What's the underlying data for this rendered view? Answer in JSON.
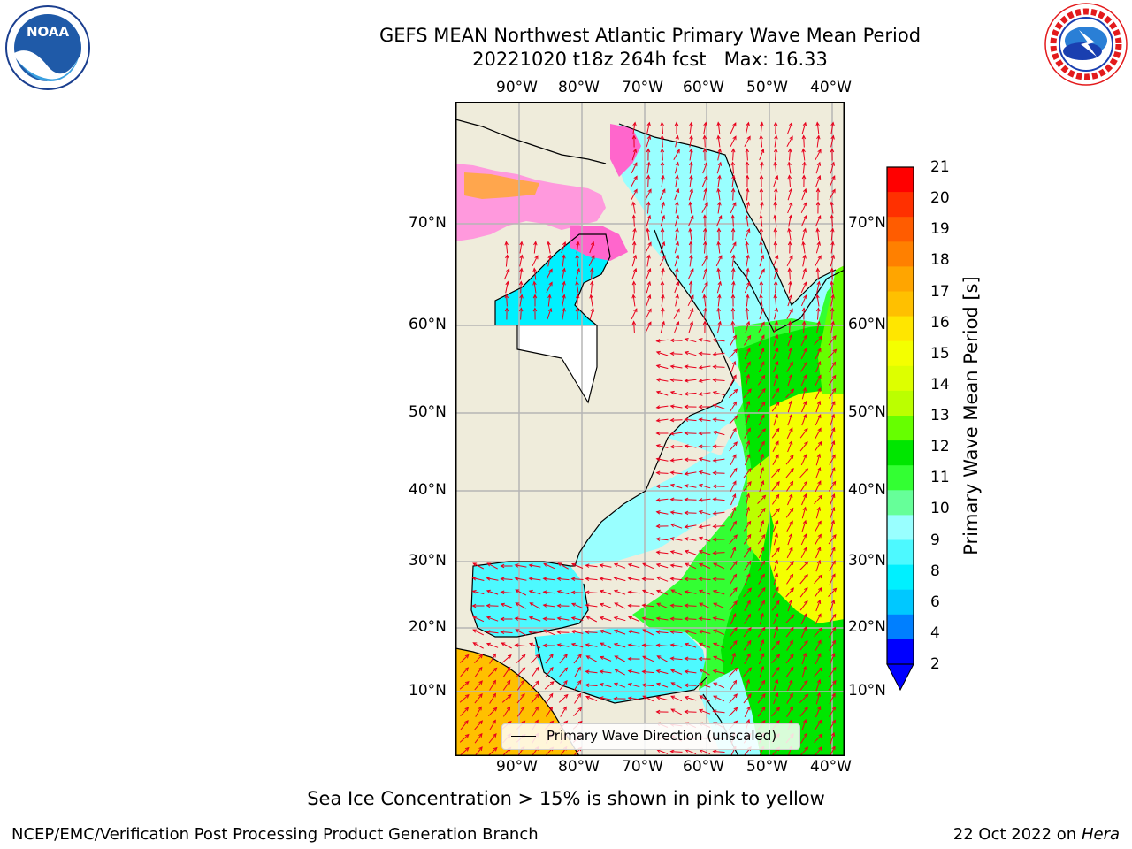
{
  "title": {
    "line1": "GEFS MEAN Northwest Atlantic Primary Wave Mean Period",
    "line2": "20221020 t18z 264h fcst   Max: 16.33"
  },
  "axes": {
    "lon_labels": [
      "90°W",
      "80°W",
      "70°W",
      "60°W",
      "50°W",
      "40°W"
    ],
    "lat_labels_left": [
      "70°N",
      "60°N",
      "50°N",
      "40°N",
      "30°N",
      "20°N",
      "10°N"
    ],
    "lat_labels_right": [
      "70°N",
      "60°N",
      "50°N",
      "40°N",
      "30°N",
      "20°N",
      "10°N"
    ]
  },
  "legend": {
    "label": "Primary Wave Direction (unscaled)"
  },
  "colorbar": {
    "label": "Primary Wave Mean Period [s]",
    "ticks": [
      "21",
      "20",
      "19",
      "18",
      "17",
      "16",
      "15",
      "14",
      "13",
      "12",
      "11",
      "10",
      "9",
      "8",
      "6",
      "4",
      "2"
    ],
    "colors": [
      "#ff0000",
      "#ff3000",
      "#ff5c00",
      "#ff8000",
      "#ffa500",
      "#ffc000",
      "#ffe600",
      "#f4ff00",
      "#ddff00",
      "#bbff00",
      "#66ff00",
      "#00e600",
      "#33ff33",
      "#66ff99",
      "#99ffff",
      "#4df9ff",
      "#00f0ff",
      "#00c8ff",
      "#007fff",
      "#0000ff"
    ]
  },
  "note": "Sea Ice Concentration > 15% is shown in pink to yellow",
  "footer": {
    "left": "NCEP/EMC/Verification Post Processing Product Generation Branch",
    "right_prefix": "22 Oct 2022 on ",
    "right_host": "Hera"
  },
  "logos": {
    "noaa_text": "NOAA",
    "nws_text": "NATIONAL WEATHER SERVICE"
  }
}
